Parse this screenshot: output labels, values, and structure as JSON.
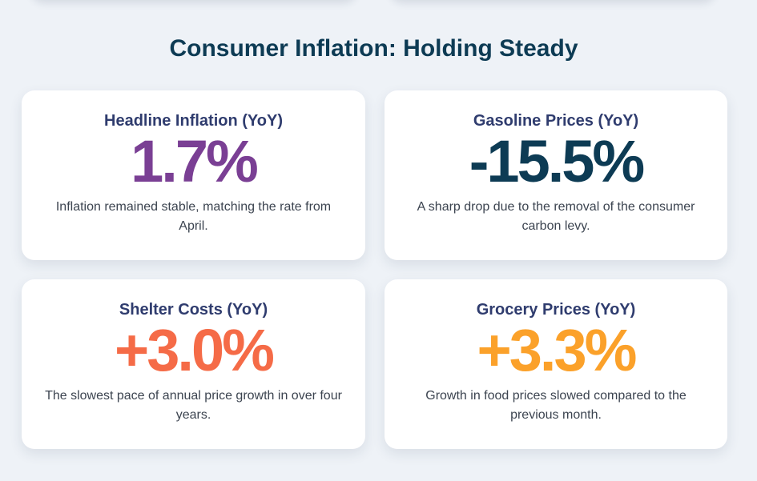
{
  "section": {
    "title": "Consumer Inflation: Holding Steady"
  },
  "cards": [
    {
      "title": "Headline Inflation (YoY)",
      "value": "1.7%",
      "color": "#7a3f94",
      "description": "Inflation remained stable, matching the rate from April."
    },
    {
      "title": "Gasoline Prices (YoY)",
      "value": "-15.5%",
      "color": "#0d3b54",
      "description": "A sharp drop due to the removal of the consumer carbon levy."
    },
    {
      "title": "Shelter Costs (YoY)",
      "value": "+3.0%",
      "color": "#f56b47",
      "description": "The slowest pace of annual price growth in over four years."
    },
    {
      "title": "Grocery Prices (YoY)",
      "value": "+3.3%",
      "color": "#fba12a",
      "description": "Growth in food prices slowed compared to the previous month."
    }
  ]
}
